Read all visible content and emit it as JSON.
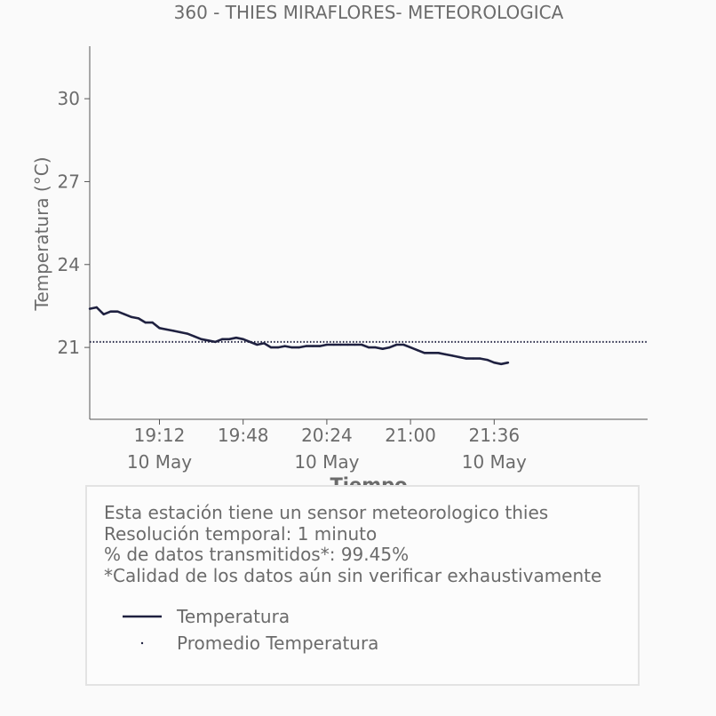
{
  "chart_data": {
    "type": "line",
    "title": "360 - THIES MIRAFLORES- METEOROLOGICA",
    "xlabel": "Tiempo",
    "ylabel": "Temperatura (°C)",
    "xlim": [
      "18:42",
      "22:42"
    ],
    "ylim": [
      18.4,
      31.9
    ],
    "x_ticks": [
      {
        "time": "19:12",
        "date": "10 May"
      },
      {
        "time": "19:48",
        "date": ""
      },
      {
        "time": "20:24",
        "date": "10 May"
      },
      {
        "time": "21:00",
        "date": ""
      },
      {
        "time": "21:36",
        "date": "10 May"
      }
    ],
    "y_ticks": [
      21,
      24,
      27,
      30
    ],
    "grid": false,
    "colors": {
      "temperatura": "#1f2140",
      "promedio": "#1f2140"
    },
    "series": [
      {
        "name": "Temperatura",
        "style": "solid",
        "x": [
          "18:42",
          "18:45",
          "18:48",
          "18:51",
          "18:54",
          "18:57",
          "19:00",
          "19:03",
          "19:06",
          "19:09",
          "19:12",
          "19:15",
          "19:18",
          "19:21",
          "19:24",
          "19:27",
          "19:30",
          "19:33",
          "19:36",
          "19:39",
          "19:42",
          "19:45",
          "19:48",
          "19:51",
          "19:54",
          "19:57",
          "20:00",
          "20:03",
          "20:06",
          "20:09",
          "20:12",
          "20:15",
          "20:18",
          "20:21",
          "20:24",
          "20:27",
          "20:30",
          "20:33",
          "20:36",
          "20:39",
          "20:42",
          "20:45",
          "20:48",
          "20:51",
          "20:54",
          "20:57",
          "21:00",
          "21:03",
          "21:06",
          "21:09",
          "21:12",
          "21:15",
          "21:18",
          "21:21",
          "21:24",
          "21:27",
          "21:30",
          "21:33",
          "21:36",
          "21:39",
          "21:42"
        ],
        "values": [
          22.4,
          22.45,
          22.2,
          22.3,
          22.3,
          22.2,
          22.1,
          22.05,
          21.9,
          21.9,
          21.7,
          21.65,
          21.6,
          21.55,
          21.5,
          21.4,
          21.3,
          21.25,
          21.2,
          21.3,
          21.3,
          21.35,
          21.3,
          21.2,
          21.1,
          21.15,
          21.0,
          21.0,
          21.05,
          21.0,
          21.0,
          21.05,
          21.05,
          21.05,
          21.1,
          21.1,
          21.1,
          21.1,
          21.1,
          21.1,
          21.0,
          21.0,
          20.95,
          21.0,
          21.1,
          21.1,
          21.0,
          20.9,
          20.8,
          20.8,
          20.8,
          20.75,
          20.7,
          20.65,
          20.6,
          20.6,
          20.6,
          20.55,
          20.45,
          20.4,
          20.45
        ]
      },
      {
        "name": "Promedio Temperatura",
        "style": "dotted",
        "value": 21.2
      }
    ]
  },
  "info": {
    "lines": [
      "Esta estación tiene un sensor meteorologico thies",
      "Resolución temporal: 1 minuto",
      "% de datos transmitidos*: 99.45%",
      "*Calidad de los datos aún sin verificar exhaustivamente"
    ],
    "legend": [
      {
        "label": "Temperatura"
      },
      {
        "label": "Promedio Temperatura"
      }
    ]
  }
}
